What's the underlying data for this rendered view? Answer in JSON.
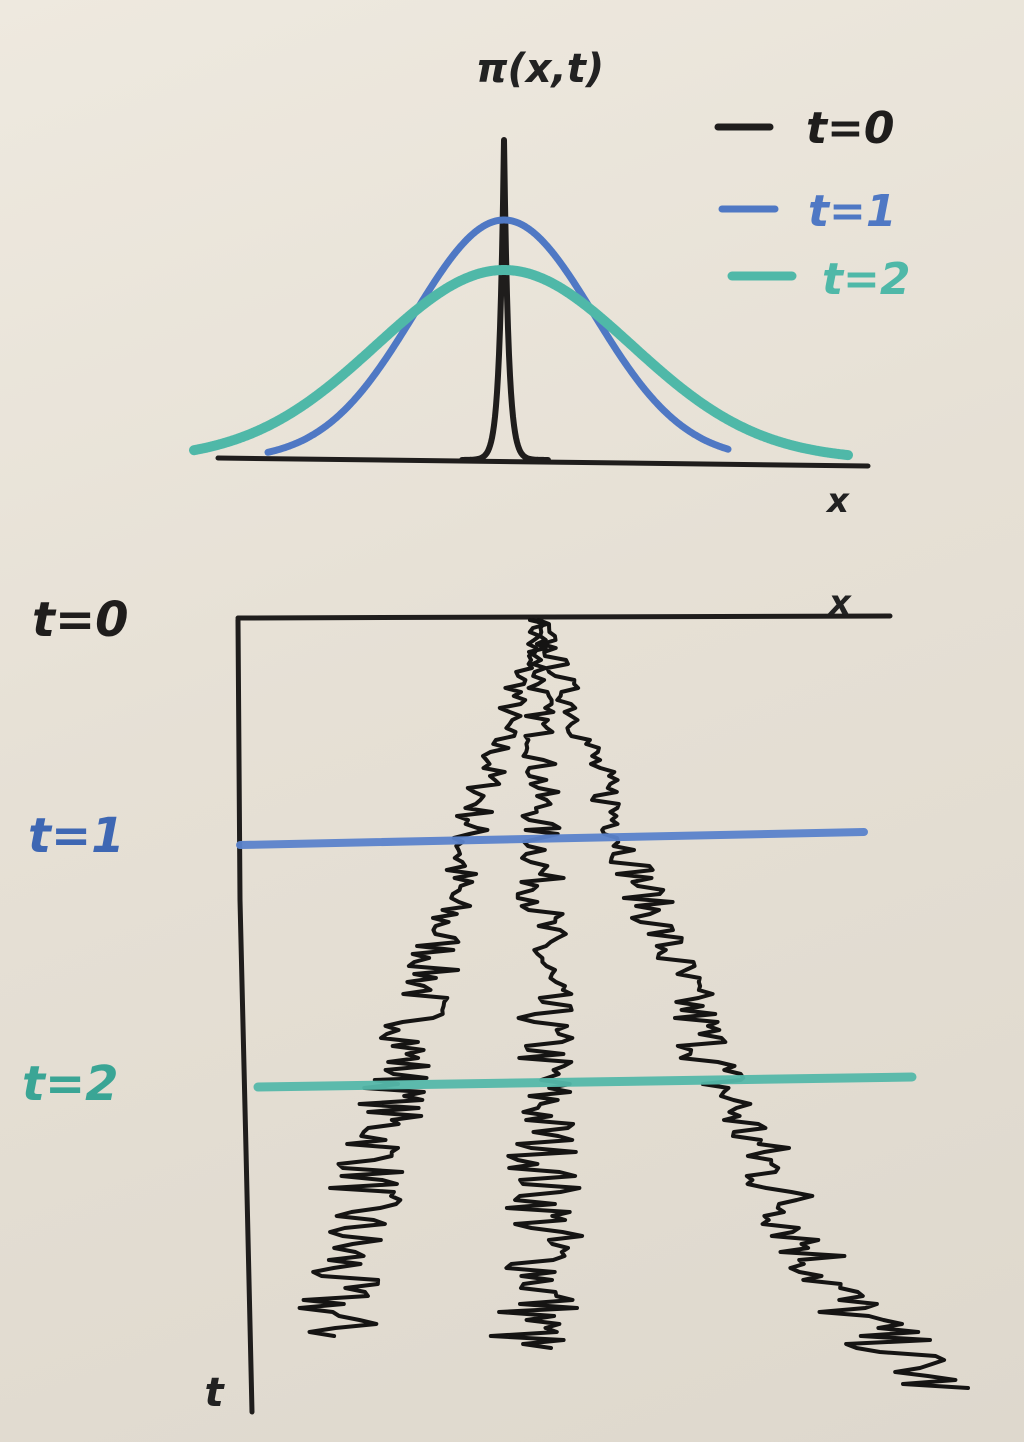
{
  "top_plot": {
    "title": "π(x,t)",
    "x_label": "x",
    "legend": [
      {
        "label": "t=0",
        "color": "#1f1d1c"
      },
      {
        "label": "t=1",
        "color": "#4f78c4"
      },
      {
        "label": "t=2",
        "color": "#4fb8a8"
      }
    ],
    "curves": [
      {
        "t": 0,
        "color": "#1f1d1c",
        "sigma": 0.08
      },
      {
        "t": 1,
        "color": "#4f78c4",
        "sigma": 1.0
      },
      {
        "t": 2,
        "color": "#4fb8a8",
        "sigma": 1.414
      }
    ]
  },
  "bottom_plot": {
    "x_label": "x",
    "t_label": "t",
    "time_labels": [
      {
        "label": "t=0",
        "color": "#1f1d1c"
      },
      {
        "label": "t=1",
        "color": "#3e67b3"
      },
      {
        "label": "t=2",
        "color": "#3aa595"
      }
    ],
    "paths_count": 3
  }
}
